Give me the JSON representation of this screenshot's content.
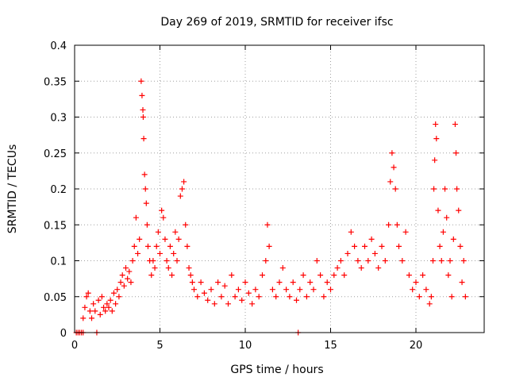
{
  "chart_data": {
    "type": "scatter",
    "title": "Day 269 of 2019, SRMTID for receiver ifsc",
    "xlabel": "GPS time / hours",
    "ylabel": "SRMTID / TECUs",
    "xlim": [
      0,
      24
    ],
    "ylim": [
      0,
      0.4
    ],
    "xticks": [
      0,
      5,
      10,
      15,
      20
    ],
    "yticks": [
      0,
      0.05,
      0.1,
      0.15,
      0.2,
      0.25,
      0.3,
      0.35,
      0.4
    ],
    "xtick_labels": [
      "0",
      "5",
      "10",
      "15",
      "20"
    ],
    "ytick_labels": [
      "0",
      "0.05",
      "0.1",
      "0.15",
      "0.2",
      "0.25",
      "0.3",
      "0.35",
      "0.4"
    ],
    "grid": true,
    "marker": "plus",
    "color": "#ff0000",
    "series": [
      {
        "name": "SRMTID",
        "points": [
          [
            0.1,
            0.0
          ],
          [
            0.2,
            0.0
          ],
          [
            0.3,
            0.0
          ],
          [
            0.4,
            0.0
          ],
          [
            0.5,
            0.0
          ],
          [
            1.3,
            0.0
          ],
          [
            13.1,
            0.0
          ],
          [
            0.5,
            0.02
          ],
          [
            0.6,
            0.035
          ],
          [
            0.7,
            0.05
          ],
          [
            0.8,
            0.055
          ],
          [
            0.9,
            0.03
          ],
          [
            1.0,
            0.02
          ],
          [
            1.1,
            0.04
          ],
          [
            1.2,
            0.03
          ],
          [
            1.4,
            0.045
          ],
          [
            1.5,
            0.025
          ],
          [
            1.6,
            0.05
          ],
          [
            1.7,
            0.035
          ],
          [
            1.8,
            0.03
          ],
          [
            1.9,
            0.04
          ],
          [
            2.0,
            0.035
          ],
          [
            2.1,
            0.045
          ],
          [
            2.2,
            0.03
          ],
          [
            2.3,
            0.055
          ],
          [
            2.4,
            0.04
          ],
          [
            2.5,
            0.06
          ],
          [
            2.6,
            0.05
          ],
          [
            2.7,
            0.07
          ],
          [
            2.8,
            0.08
          ],
          [
            2.9,
            0.065
          ],
          [
            3.0,
            0.09
          ],
          [
            3.1,
            0.075
          ],
          [
            3.2,
            0.085
          ],
          [
            3.3,
            0.07
          ],
          [
            3.4,
            0.1
          ],
          [
            3.5,
            0.12
          ],
          [
            3.6,
            0.16
          ],
          [
            3.7,
            0.11
          ],
          [
            3.8,
            0.13
          ],
          [
            3.9,
            0.35
          ],
          [
            3.95,
            0.33
          ],
          [
            4.0,
            0.31
          ],
          [
            4.02,
            0.3
          ],
          [
            4.05,
            0.27
          ],
          [
            4.1,
            0.22
          ],
          [
            4.15,
            0.2
          ],
          [
            4.2,
            0.18
          ],
          [
            4.25,
            0.15
          ],
          [
            4.3,
            0.12
          ],
          [
            4.4,
            0.1
          ],
          [
            4.5,
            0.08
          ],
          [
            4.6,
            0.1
          ],
          [
            4.7,
            0.09
          ],
          [
            4.8,
            0.12
          ],
          [
            4.9,
            0.14
          ],
          [
            5.0,
            0.11
          ],
          [
            5.1,
            0.17
          ],
          [
            5.2,
            0.16
          ],
          [
            5.3,
            0.13
          ],
          [
            5.4,
            0.1
          ],
          [
            5.5,
            0.09
          ],
          [
            5.6,
            0.12
          ],
          [
            5.7,
            0.08
          ],
          [
            5.8,
            0.11
          ],
          [
            5.9,
            0.14
          ],
          [
            6.0,
            0.1
          ],
          [
            6.1,
            0.13
          ],
          [
            6.2,
            0.19
          ],
          [
            6.3,
            0.2
          ],
          [
            6.4,
            0.21
          ],
          [
            6.5,
            0.15
          ],
          [
            6.6,
            0.12
          ],
          [
            6.7,
            0.09
          ],
          [
            6.8,
            0.08
          ],
          [
            6.9,
            0.07
          ],
          [
            7.0,
            0.06
          ],
          [
            7.2,
            0.05
          ],
          [
            7.4,
            0.07
          ],
          [
            7.6,
            0.055
          ],
          [
            7.8,
            0.045
          ],
          [
            8.0,
            0.06
          ],
          [
            8.2,
            0.04
          ],
          [
            8.4,
            0.07
          ],
          [
            8.6,
            0.05
          ],
          [
            8.8,
            0.065
          ],
          [
            9.0,
            0.04
          ],
          [
            9.2,
            0.08
          ],
          [
            9.4,
            0.05
          ],
          [
            9.6,
            0.06
          ],
          [
            9.8,
            0.045
          ],
          [
            10.0,
            0.07
          ],
          [
            10.2,
            0.055
          ],
          [
            10.4,
            0.04
          ],
          [
            10.6,
            0.06
          ],
          [
            10.8,
            0.05
          ],
          [
            11.0,
            0.08
          ],
          [
            11.2,
            0.1
          ],
          [
            11.3,
            0.15
          ],
          [
            11.4,
            0.12
          ],
          [
            11.6,
            0.06
          ],
          [
            11.8,
            0.05
          ],
          [
            12.0,
            0.07
          ],
          [
            12.2,
            0.09
          ],
          [
            12.4,
            0.06
          ],
          [
            12.6,
            0.05
          ],
          [
            12.8,
            0.07
          ],
          [
            13.0,
            0.045
          ],
          [
            13.2,
            0.06
          ],
          [
            13.4,
            0.08
          ],
          [
            13.6,
            0.05
          ],
          [
            13.8,
            0.07
          ],
          [
            14.0,
            0.06
          ],
          [
            14.2,
            0.1
          ],
          [
            14.4,
            0.08
          ],
          [
            14.6,
            0.05
          ],
          [
            14.8,
            0.07
          ],
          [
            15.0,
            0.06
          ],
          [
            15.2,
            0.08
          ],
          [
            15.4,
            0.09
          ],
          [
            15.6,
            0.1
          ],
          [
            15.8,
            0.08
          ],
          [
            16.0,
            0.11
          ],
          [
            16.2,
            0.14
          ],
          [
            16.4,
            0.12
          ],
          [
            16.6,
            0.1
          ],
          [
            16.8,
            0.09
          ],
          [
            17.0,
            0.12
          ],
          [
            17.2,
            0.1
          ],
          [
            17.4,
            0.13
          ],
          [
            17.6,
            0.11
          ],
          [
            17.8,
            0.09
          ],
          [
            18.0,
            0.12
          ],
          [
            18.2,
            0.1
          ],
          [
            18.4,
            0.15
          ],
          [
            18.5,
            0.21
          ],
          [
            18.6,
            0.25
          ],
          [
            18.7,
            0.23
          ],
          [
            18.8,
            0.2
          ],
          [
            18.9,
            0.15
          ],
          [
            19.0,
            0.12
          ],
          [
            19.2,
            0.1
          ],
          [
            19.4,
            0.14
          ],
          [
            19.6,
            0.08
          ],
          [
            19.8,
            0.06
          ],
          [
            20.0,
            0.07
          ],
          [
            20.2,
            0.05
          ],
          [
            20.4,
            0.08
          ],
          [
            20.6,
            0.06
          ],
          [
            20.8,
            0.04
          ],
          [
            20.9,
            0.05
          ],
          [
            21.0,
            0.1
          ],
          [
            21.05,
            0.2
          ],
          [
            21.1,
            0.24
          ],
          [
            21.15,
            0.29
          ],
          [
            21.2,
            0.27
          ],
          [
            21.3,
            0.17
          ],
          [
            21.4,
            0.12
          ],
          [
            21.5,
            0.1
          ],
          [
            21.6,
            0.14
          ],
          [
            21.7,
            0.2
          ],
          [
            21.8,
            0.16
          ],
          [
            21.9,
            0.08
          ],
          [
            22.0,
            0.1
          ],
          [
            22.1,
            0.05
          ],
          [
            22.2,
            0.13
          ],
          [
            22.3,
            0.29
          ],
          [
            22.35,
            0.25
          ],
          [
            22.4,
            0.2
          ],
          [
            22.5,
            0.17
          ],
          [
            22.6,
            0.12
          ],
          [
            22.7,
            0.07
          ],
          [
            22.8,
            0.1
          ],
          [
            22.9,
            0.05
          ]
        ]
      }
    ]
  }
}
